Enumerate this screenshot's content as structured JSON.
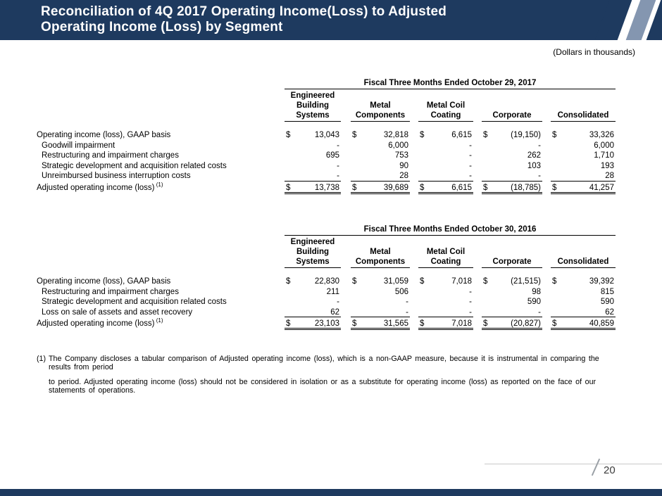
{
  "slide": {
    "title_line1": "Reconciliation of 4Q 2017 Operating Income(Loss) to Adjusted",
    "title_line2": "Operating Income (Loss) by Segment",
    "units_note": "(Dollars in thousands)",
    "page_number": "20"
  },
  "colors": {
    "header_navy": "#1e3a5f",
    "accent_steel": "#8496b0"
  },
  "currency_symbol": "$",
  "tables": [
    {
      "name": "fiscal_q4_2017",
      "period_label": "Fiscal Three Months Ended October 29, 2017",
      "columns": [
        {
          "lines": [
            "Engineered",
            "Building",
            "Systems"
          ]
        },
        {
          "lines": [
            "Metal",
            "Components"
          ]
        },
        {
          "lines": [
            "Metal Coil",
            "Coating"
          ]
        },
        {
          "lines": [
            "Corporate"
          ]
        },
        {
          "lines": [
            "Consolidated"
          ]
        }
      ],
      "rows": [
        {
          "label": "Operating income (loss), GAAP basis",
          "dollar": true,
          "values": [
            "13,043",
            "32,818",
            "6,615",
            "(19,150)",
            "33,326"
          ]
        },
        {
          "label": "Goodwill impairment",
          "indent": true,
          "values": [
            "-",
            "6,000",
            "-",
            "-",
            "6,000"
          ]
        },
        {
          "label": "Restructuring and impairment charges",
          "indent": true,
          "values": [
            "695",
            "753",
            "-",
            "262",
            "1,710"
          ]
        },
        {
          "label": "Strategic development and acquisition related costs",
          "indent": true,
          "values": [
            "-",
            "90",
            "-",
            "103",
            "193"
          ]
        },
        {
          "label": "Unreimbursed business interruption costs",
          "indent": true,
          "rule_below": true,
          "values": [
            "-",
            "28",
            "-",
            "-",
            "28"
          ]
        },
        {
          "label": "Adjusted operating income (loss)",
          "sup": "(1)",
          "dollar": true,
          "total": true,
          "values": [
            "13,738",
            "39,689",
            "6,615",
            "(18,785)",
            "41,257"
          ]
        }
      ]
    },
    {
      "name": "fiscal_q4_2016",
      "period_label": "Fiscal Three Months Ended October 30, 2016",
      "columns": [
        {
          "lines": [
            "Engineered",
            "Building",
            "Systems"
          ]
        },
        {
          "lines": [
            "Metal",
            "Components"
          ]
        },
        {
          "lines": [
            "Metal Coil",
            "Coating"
          ]
        },
        {
          "lines": [
            "Corporate"
          ]
        },
        {
          "lines": [
            "Consolidated"
          ]
        }
      ],
      "rows": [
        {
          "label": "Operating income (loss), GAAP basis",
          "dollar": true,
          "values": [
            "22,830",
            "31,059",
            "7,018",
            "(21,515)",
            "39,392"
          ]
        },
        {
          "label": "Restructuring and impairment charges",
          "indent": true,
          "values": [
            "211",
            "506",
            "-",
            "98",
            "815"
          ]
        },
        {
          "label": "Strategic development and acquisition related costs",
          "indent": true,
          "values": [
            "-",
            "-",
            "-",
            "590",
            "590"
          ]
        },
        {
          "label": "Loss on sale of assets and asset recovery",
          "indent": true,
          "rule_below": true,
          "values": [
            "62",
            "-",
            "-",
            "-",
            "62"
          ]
        },
        {
          "label": "Adjusted operating income (loss)",
          "sup": "(1)",
          "dollar": true,
          "total": true,
          "values": [
            "23,103",
            "31,565",
            "7,018",
            "(20,827)",
            "40,859"
          ]
        }
      ]
    }
  ],
  "footnote": {
    "marker": "(1)",
    "line1": "The Company discloses a tabular comparison of Adjusted operating income (loss), which is a non-GAAP measure, because it is instrumental in comparing the results from period",
    "line2": "to period. Adjusted operating income (loss) should not be considered in isolation or as a substitute for operating income (loss) as reported on the face of our statements of operations."
  }
}
